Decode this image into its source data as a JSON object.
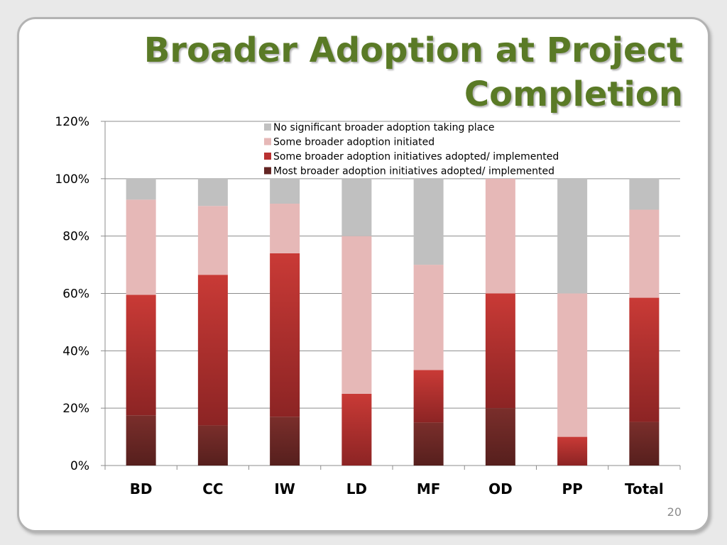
{
  "title": "Broader Adoption at Project Completion",
  "page_number": "20",
  "colors": {
    "title": "#5a7a26",
    "no_adoption": "#c0c0c0",
    "some_initiated": "#e6b8b7",
    "some_adopted": "#b93131",
    "most_adopted": "#632523"
  },
  "chart_data": {
    "type": "bar",
    "stacked": true,
    "categories": [
      "BD",
      "CC",
      "IW",
      "LD",
      "MF",
      "OD",
      "PP",
      "Total"
    ],
    "y_ticks": [
      "0%",
      "20%",
      "40%",
      "60%",
      "80%",
      "100%",
      "120%"
    ],
    "ylim": [
      0,
      120
    ],
    "grid": true,
    "legend_position": "top-center",
    "series": [
      {
        "name": "Most broader adoption initiatives adopted/ implemented",
        "color": "#632523",
        "values": [
          17.5,
          14,
          17,
          0,
          15,
          20,
          0,
          15.2
        ]
      },
      {
        "name": "Some broader adoption initiatives adopted/ implemented",
        "color": "#b93131",
        "values": [
          42,
          52.5,
          57,
          25,
          18.3,
          40,
          10,
          43.3
        ]
      },
      {
        "name": "Some broader adoption initiated",
        "color": "#e6b8b7",
        "values": [
          33.2,
          24,
          17.3,
          55,
          36.7,
          40,
          50,
          30.7
        ]
      },
      {
        "name": "No significant broader adoption taking place",
        "color": "#c0c0c0",
        "values": [
          7.3,
          9.5,
          8.7,
          20,
          30,
          0,
          40,
          10.8
        ]
      }
    ],
    "legend_order": [
      "No significant broader adoption taking place",
      "Some broader adoption initiated",
      "Some broader adoption initiatives adopted/ implemented",
      "Most broader adoption initiatives adopted/ implemented"
    ]
  }
}
